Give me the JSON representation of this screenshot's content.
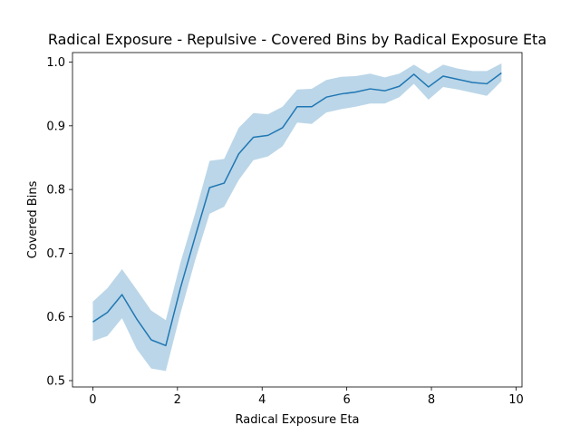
{
  "chart_data": {
    "type": "line",
    "title": "Radical Exposure - Repulsive - Covered Bins by Radical Exposure Eta",
    "xlabel": "Radical Exposure Eta",
    "ylabel": "Covered Bins",
    "xlim": [
      -0.48,
      10.14
    ],
    "ylim": [
      0.49,
      1.015
    ],
    "xticks": [
      0,
      2,
      4,
      6,
      8,
      10
    ],
    "yticks": [
      0.5,
      0.6,
      0.7,
      0.8,
      0.9,
      1.0
    ],
    "xtick_labels": [
      "0",
      "2",
      "4",
      "6",
      "8",
      "10"
    ],
    "ytick_labels": [
      "0.5",
      "0.6",
      "0.7",
      "0.8",
      "0.9",
      "1.0"
    ],
    "grid": false,
    "colors": {
      "line": "#1f77b4",
      "band": "#1f77b4"
    },
    "series": [
      {
        "x": [
          0.0,
          0.345,
          0.69,
          1.034,
          1.379,
          1.724,
          2.069,
          2.414,
          2.759,
          3.103,
          3.448,
          3.793,
          4.138,
          4.483,
          4.828,
          5.172,
          5.517,
          5.862,
          6.207,
          6.552,
          6.897,
          7.241,
          7.586,
          7.931,
          8.276,
          8.621,
          8.966,
          9.31,
          9.655
        ],
        "y": [
          0.592,
          0.607,
          0.635,
          0.597,
          0.564,
          0.555,
          0.645,
          0.725,
          0.803,
          0.81,
          0.856,
          0.882,
          0.885,
          0.897,
          0.93,
          0.93,
          0.945,
          0.95,
          0.953,
          0.958,
          0.955,
          0.962,
          0.981,
          0.961,
          0.978,
          0.973,
          0.968,
          0.966,
          0.983
        ],
        "y_lower": [
          0.562,
          0.57,
          0.598,
          0.55,
          0.519,
          0.515,
          0.605,
          0.688,
          0.762,
          0.773,
          0.815,
          0.846,
          0.852,
          0.868,
          0.905,
          0.903,
          0.921,
          0.926,
          0.93,
          0.935,
          0.935,
          0.945,
          0.966,
          0.941,
          0.961,
          0.957,
          0.952,
          0.947,
          0.97
        ],
        "y_upper": [
          0.624,
          0.645,
          0.675,
          0.643,
          0.61,
          0.595,
          0.685,
          0.762,
          0.845,
          0.848,
          0.897,
          0.92,
          0.918,
          0.93,
          0.957,
          0.958,
          0.972,
          0.977,
          0.978,
          0.982,
          0.976,
          0.982,
          0.996,
          0.982,
          0.996,
          0.99,
          0.986,
          0.986,
          0.998
        ]
      }
    ]
  }
}
